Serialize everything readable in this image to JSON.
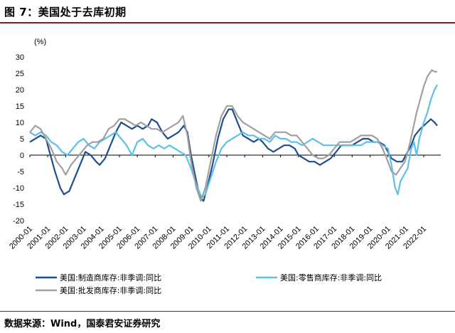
{
  "page": {
    "title": "图 7：美国处于去库初期",
    "source": "数据来源：Wind，国泰君安证券研究"
  },
  "chart_data": {
    "type": "line",
    "unit": "(%)",
    "ylim": [
      -20,
      30
    ],
    "yticks": [
      -20,
      -15,
      -10,
      -5,
      0,
      5,
      10,
      15,
      20,
      25,
      30
    ],
    "xlim": [
      2000.0,
      2022.95
    ],
    "xticks": [
      "2000-01",
      "2001-01",
      "2002-01",
      "2003-01",
      "2004-01",
      "2005-01",
      "2006-01",
      "2007-01",
      "2008-01",
      "2009-01",
      "2010-01",
      "2011-01",
      "2012-01",
      "2013-01",
      "2014-01",
      "2015-01",
      "2016-01",
      "2017-01",
      "2018-01",
      "2019-01",
      "2020-01",
      "2021-01",
      "2022-01"
    ],
    "grid": false,
    "legend_position": "bottom",
    "series": [
      {
        "name": "美国:制造商库存:非季调:同比",
        "color": "#1f4e8c",
        "points": [
          [
            2000.0,
            4
          ],
          [
            2000.3,
            5
          ],
          [
            2000.6,
            6
          ],
          [
            2000.9,
            5
          ],
          [
            2001.1,
            1
          ],
          [
            2001.4,
            -5
          ],
          [
            2001.7,
            -10
          ],
          [
            2001.9,
            -12
          ],
          [
            2002.2,
            -11
          ],
          [
            2002.5,
            -7
          ],
          [
            2002.8,
            -3
          ],
          [
            2003.1,
            1
          ],
          [
            2003.4,
            0
          ],
          [
            2003.7,
            -2
          ],
          [
            2003.9,
            -3
          ],
          [
            2004.2,
            -1
          ],
          [
            2004.5,
            3
          ],
          [
            2004.8,
            7
          ],
          [
            2005.1,
            10
          ],
          [
            2005.4,
            9
          ],
          [
            2005.7,
            8
          ],
          [
            2006.0,
            9
          ],
          [
            2006.3,
            8
          ],
          [
            2006.6,
            9
          ],
          [
            2006.8,
            11
          ],
          [
            2007.1,
            10
          ],
          [
            2007.4,
            7
          ],
          [
            2007.7,
            5
          ],
          [
            2008.0,
            6
          ],
          [
            2008.3,
            7
          ],
          [
            2008.6,
            9
          ],
          [
            2008.8,
            7
          ],
          [
            2009.0,
            0
          ],
          [
            2009.3,
            -8
          ],
          [
            2009.5,
            -13
          ],
          [
            2009.7,
            -14
          ],
          [
            2009.9,
            -10
          ],
          [
            2010.2,
            -3
          ],
          [
            2010.5,
            5
          ],
          [
            2010.8,
            11
          ],
          [
            2011.1,
            14
          ],
          [
            2011.3,
            14
          ],
          [
            2011.6,
            10
          ],
          [
            2011.9,
            6
          ],
          [
            2012.2,
            5
          ],
          [
            2012.5,
            4
          ],
          [
            2012.8,
            5
          ],
          [
            2013.0,
            4
          ],
          [
            2013.3,
            2
          ],
          [
            2013.6,
            1
          ],
          [
            2013.9,
            2
          ],
          [
            2014.2,
            3
          ],
          [
            2014.5,
            3
          ],
          [
            2014.8,
            2
          ],
          [
            2015.0,
            0
          ],
          [
            2015.3,
            -1
          ],
          [
            2015.6,
            -2
          ],
          [
            2015.9,
            -2
          ],
          [
            2016.2,
            -3
          ],
          [
            2016.5,
            -2
          ],
          [
            2016.8,
            -1
          ],
          [
            2017.1,
            1
          ],
          [
            2017.4,
            3
          ],
          [
            2017.7,
            3
          ],
          [
            2018.0,
            3
          ],
          [
            2018.3,
            4
          ],
          [
            2018.6,
            5
          ],
          [
            2018.9,
            5
          ],
          [
            2019.2,
            4
          ],
          [
            2019.5,
            4
          ],
          [
            2019.8,
            3
          ],
          [
            2020.0,
            1
          ],
          [
            2020.2,
            -1
          ],
          [
            2020.5,
            -2
          ],
          [
            2020.8,
            -2
          ],
          [
            2021.0,
            0
          ],
          [
            2021.3,
            3
          ],
          [
            2021.5,
            6
          ],
          [
            2021.8,
            8
          ],
          [
            2022.0,
            9
          ],
          [
            2022.2,
            10
          ],
          [
            2022.4,
            11
          ],
          [
            2022.6,
            10
          ],
          [
            2022.75,
            9
          ]
        ]
      },
      {
        "name": "美国:零售商库存:非季调:同比",
        "color": "#5bc0eb",
        "points": [
          [
            2000.0,
            7
          ],
          [
            2000.3,
            6
          ],
          [
            2000.6,
            7
          ],
          [
            2000.9,
            6
          ],
          [
            2001.2,
            4
          ],
          [
            2001.5,
            3
          ],
          [
            2001.8,
            1
          ],
          [
            2002.1,
            0
          ],
          [
            2002.4,
            2
          ],
          [
            2002.7,
            4
          ],
          [
            2003.0,
            5
          ],
          [
            2003.3,
            3
          ],
          [
            2003.6,
            2
          ],
          [
            2003.9,
            4
          ],
          [
            2004.2,
            5
          ],
          [
            2004.5,
            6
          ],
          [
            2004.8,
            7
          ],
          [
            2005.1,
            5
          ],
          [
            2005.4,
            3
          ],
          [
            2005.7,
            0
          ],
          [
            2006.0,
            4
          ],
          [
            2006.3,
            5
          ],
          [
            2006.6,
            3
          ],
          [
            2006.9,
            2
          ],
          [
            2007.2,
            3
          ],
          [
            2007.5,
            2
          ],
          [
            2007.8,
            3
          ],
          [
            2008.1,
            2
          ],
          [
            2008.4,
            1
          ],
          [
            2008.7,
            0
          ],
          [
            2009.0,
            -4
          ],
          [
            2009.3,
            -9
          ],
          [
            2009.6,
            -13
          ],
          [
            2009.8,
            -12
          ],
          [
            2010.1,
            -7
          ],
          [
            2010.4,
            -2
          ],
          [
            2010.7,
            2
          ],
          [
            2011.0,
            4
          ],
          [
            2011.3,
            5
          ],
          [
            2011.6,
            6
          ],
          [
            2011.9,
            7
          ],
          [
            2012.2,
            6
          ],
          [
            2012.5,
            6
          ],
          [
            2012.8,
            5
          ],
          [
            2013.1,
            5
          ],
          [
            2013.4,
            4
          ],
          [
            2013.7,
            6
          ],
          [
            2014.0,
            5
          ],
          [
            2014.3,
            5
          ],
          [
            2014.6,
            4
          ],
          [
            2014.9,
            4
          ],
          [
            2015.2,
            3
          ],
          [
            2015.5,
            4
          ],
          [
            2015.8,
            5
          ],
          [
            2016.1,
            4
          ],
          [
            2016.4,
            3
          ],
          [
            2016.7,
            3
          ],
          [
            2017.0,
            3
          ],
          [
            2017.3,
            3
          ],
          [
            2017.6,
            3
          ],
          [
            2017.9,
            3
          ],
          [
            2018.2,
            3
          ],
          [
            2018.5,
            3
          ],
          [
            2018.8,
            4
          ],
          [
            2019.1,
            4
          ],
          [
            2019.4,
            4
          ],
          [
            2019.7,
            3
          ],
          [
            2020.0,
            2
          ],
          [
            2020.2,
            -3
          ],
          [
            2020.4,
            -10
          ],
          [
            2020.55,
            -12
          ],
          [
            2020.7,
            -8
          ],
          [
            2020.9,
            -6
          ],
          [
            2021.1,
            -4
          ],
          [
            2021.3,
            2
          ],
          [
            2021.45,
            4
          ],
          [
            2021.6,
            0
          ],
          [
            2021.75,
            5
          ],
          [
            2022.0,
            10
          ],
          [
            2022.2,
            13
          ],
          [
            2022.4,
            17
          ],
          [
            2022.6,
            20
          ],
          [
            2022.75,
            21.5
          ]
        ]
      },
      {
        "name": "美国:批发商库存:非季调:同比",
        "color": "#a0a0a0",
        "points": [
          [
            2000.0,
            7
          ],
          [
            2000.3,
            9
          ],
          [
            2000.6,
            8
          ],
          [
            2000.9,
            5
          ],
          [
            2001.2,
            2
          ],
          [
            2001.5,
            -2
          ],
          [
            2001.8,
            -4
          ],
          [
            2002.0,
            -6
          ],
          [
            2002.3,
            -3
          ],
          [
            2002.6,
            -1
          ],
          [
            2002.9,
            1
          ],
          [
            2003.2,
            3
          ],
          [
            2003.5,
            4
          ],
          [
            2003.8,
            4
          ],
          [
            2004.1,
            5
          ],
          [
            2004.4,
            8
          ],
          [
            2004.7,
            9
          ],
          [
            2005.0,
            11
          ],
          [
            2005.3,
            11
          ],
          [
            2005.6,
            10
          ],
          [
            2005.9,
            9
          ],
          [
            2006.2,
            10
          ],
          [
            2006.5,
            9
          ],
          [
            2006.8,
            8
          ],
          [
            2007.1,
            8
          ],
          [
            2007.4,
            7
          ],
          [
            2007.7,
            8
          ],
          [
            2008.0,
            9
          ],
          [
            2008.3,
            10
          ],
          [
            2008.55,
            12
          ],
          [
            2008.8,
            6
          ],
          [
            2009.0,
            -2
          ],
          [
            2009.3,
            -10
          ],
          [
            2009.55,
            -14
          ],
          [
            2009.8,
            -10
          ],
          [
            2010.1,
            -2
          ],
          [
            2010.4,
            6
          ],
          [
            2010.7,
            12
          ],
          [
            2011.0,
            15
          ],
          [
            2011.3,
            15
          ],
          [
            2011.6,
            12
          ],
          [
            2011.9,
            10
          ],
          [
            2012.2,
            9
          ],
          [
            2012.5,
            8
          ],
          [
            2012.8,
            7
          ],
          [
            2013.1,
            6
          ],
          [
            2013.4,
            5
          ],
          [
            2013.7,
            7
          ],
          [
            2014.0,
            7
          ],
          [
            2014.3,
            7
          ],
          [
            2014.6,
            6
          ],
          [
            2014.9,
            6
          ],
          [
            2015.2,
            4
          ],
          [
            2015.5,
            2
          ],
          [
            2015.8,
            0
          ],
          [
            2016.1,
            -1
          ],
          [
            2016.4,
            -1
          ],
          [
            2016.7,
            0
          ],
          [
            2017.0,
            2
          ],
          [
            2017.3,
            4
          ],
          [
            2017.6,
            4
          ],
          [
            2017.9,
            4
          ],
          [
            2018.2,
            5
          ],
          [
            2018.5,
            6
          ],
          [
            2018.8,
            6
          ],
          [
            2019.1,
            6
          ],
          [
            2019.4,
            5
          ],
          [
            2019.7,
            2
          ],
          [
            2020.0,
            -2
          ],
          [
            2020.2,
            -5
          ],
          [
            2020.45,
            -6
          ],
          [
            2020.7,
            -4
          ],
          [
            2020.95,
            -2
          ],
          [
            2021.2,
            3
          ],
          [
            2021.4,
            8
          ],
          [
            2021.6,
            13
          ],
          [
            2021.8,
            17
          ],
          [
            2022.0,
            21
          ],
          [
            2022.2,
            24
          ],
          [
            2022.45,
            26
          ],
          [
            2022.6,
            25.5
          ],
          [
            2022.75,
            25.5
          ]
        ]
      }
    ]
  }
}
